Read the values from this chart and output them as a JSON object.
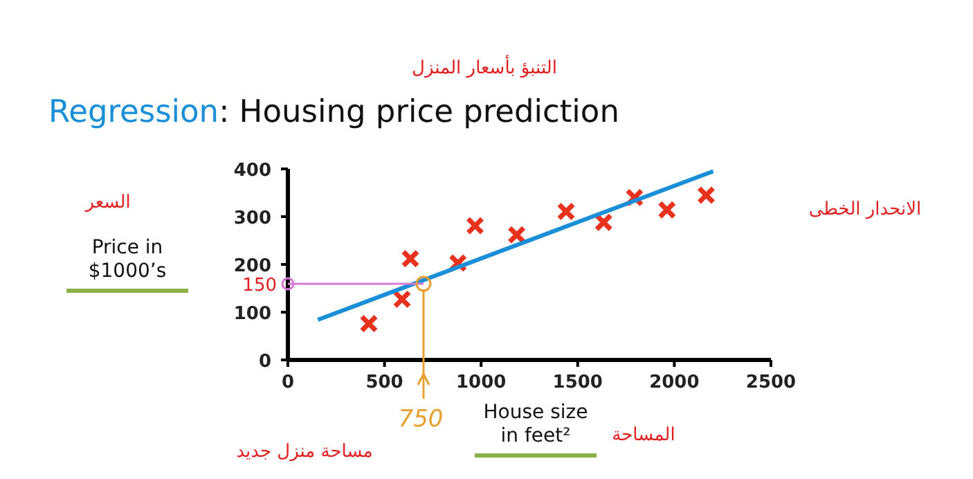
{
  "chart_data": {
    "type": "scatter",
    "title": "Regression: Housing price prediction",
    "xlabel": "House size in feet²",
    "ylabel": "Price in $1000’s",
    "xlim": [
      0,
      2500
    ],
    "xticks": [
      0,
      500,
      1000,
      1500,
      2000,
      2500
    ],
    "ylim": [
      0,
      400
    ],
    "yticks": [
      0,
      100,
      200,
      300,
      400
    ],
    "grid": false,
    "series": [
      {
        "marker": "cross",
        "color": "#e8321e",
        "x": [
          419,
          591,
          634,
          880,
          969,
          1184,
          1440,
          1634,
          1794,
          1962,
          2165
        ],
        "values": [
          76,
          127,
          212,
          203,
          281,
          262,
          311,
          288,
          340,
          314,
          345
        ]
      },
      {
        "type": "line",
        "color": "#1a8fd8",
        "x": [
          155,
          2201
        ],
        "values": [
          84,
          395
        ]
      }
    ],
    "annotations": [
      "التنبؤ بأسعار المنزل",
      "السعر",
      "الانحدار الخطى",
      "مساحة منزل جديد",
      "المساحة",
      "150",
      "750"
    ]
  }
}
